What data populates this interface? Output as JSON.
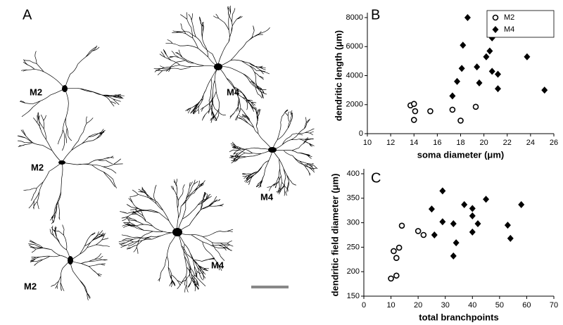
{
  "figure": {
    "panel_labels": [
      "A",
      "B",
      "C"
    ],
    "cell_labels": [
      "M2",
      "M4",
      "M2",
      "M4",
      "M4",
      "M2"
    ]
  },
  "chart_data": [
    {
      "type": "scatter",
      "xlabel": "soma diameter (μm)",
      "ylabel": "dendritic length (μm)",
      "xlim": [
        10,
        26
      ],
      "xticks": [
        10,
        12,
        14,
        16,
        18,
        20,
        22,
        24,
        26
      ],
      "ylim": [
        0,
        8000
      ],
      "yticks": [
        0,
        2000,
        4000,
        6000,
        8000
      ],
      "legend": "upper right",
      "series": [
        {
          "name": "M2",
          "marker": "circle",
          "color": "#000000",
          "x": [
            13.7,
            14.0,
            14.1,
            14.0,
            15.4,
            17.3,
            18.0,
            19.3
          ],
          "values": [
            1950,
            2050,
            1550,
            950,
            1550,
            1650,
            900,
            1850
          ]
        },
        {
          "name": "M4",
          "marker": "diamond",
          "color": "#000000",
          "x": [
            18.6,
            18.2,
            20.7,
            20.5,
            20.2,
            23.7,
            18.1,
            19.4,
            20.7,
            21.2,
            19.6,
            17.7,
            21.2,
            25.2,
            17.3
          ],
          "values": [
            8000,
            6100,
            6600,
            5700,
            5300,
            5300,
            4500,
            4600,
            4300,
            4100,
            3500,
            3600,
            3100,
            3000,
            2600
          ]
        }
      ]
    },
    {
      "type": "scatter",
      "xlabel": "total branchpoints",
      "ylabel": "dendritic field diameter (μm)",
      "xlim": [
        0,
        70
      ],
      "xticks": [
        0,
        10,
        20,
        30,
        40,
        50,
        60,
        70
      ],
      "ylim": [
        150,
        400
      ],
      "yticks": [
        150,
        200,
        250,
        300,
        350,
        400
      ],
      "series": [
        {
          "name": "M2",
          "marker": "circle",
          "color": "#000000",
          "x": [
            10,
            12,
            12,
            11,
            13,
            14,
            20,
            22
          ],
          "values": [
            186,
            192,
            228,
            242,
            249,
            294,
            283,
            275
          ]
        },
        {
          "name": "M4",
          "marker": "diamond",
          "color": "#000000",
          "x": [
            29,
            25,
            37,
            40,
            45,
            58,
            29,
            26,
            33,
            40,
            42,
            53,
            54,
            34,
            33,
            40
          ],
          "values": [
            365,
            328,
            337,
            329,
            348,
            337,
            302,
            275,
            298,
            314,
            298,
            295,
            268,
            259,
            232,
            281
          ]
        }
      ]
    }
  ]
}
